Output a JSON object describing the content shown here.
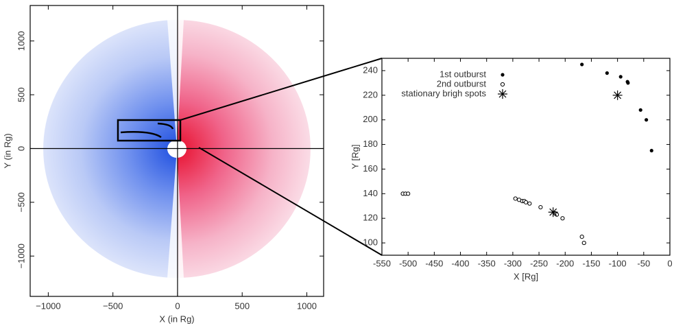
{
  "chart_data": [
    {
      "type": "map",
      "xlabel": "X (in Rg)",
      "ylabel": "Y (in Rg)",
      "xlim": [
        -1140,
        1130
      ],
      "ylim": [
        -1375,
        1330
      ],
      "xticks": [
        {
          "value": -1000,
          "label": "−1000"
        },
        {
          "value": -500,
          "label": "−500"
        },
        0,
        500,
        1000
      ],
      "yticks": [
        {
          "value": -1000,
          "label": "−1000"
        },
        {
          "value": -500,
          "label": "−500"
        },
        0,
        500,
        1000
      ]
    },
    {
      "type": "scatter",
      "xlabel": "X [Rg]",
      "ylabel": "Y [Rg]",
      "xlim": [
        -550,
        0
      ],
      "ylim": [
        90,
        250
      ],
      "xticks": [
        -550,
        -500,
        -450,
        -400,
        -350,
        -300,
        -250,
        -200,
        -150,
        -100,
        -50,
        0
      ],
      "yticks": [
        100,
        120,
        140,
        160,
        180,
        200,
        220,
        240
      ],
      "legend": "upper left",
      "series": [
        {
          "name": "1st outburst",
          "marker": "filled-circle",
          "color": "#000000",
          "x": [
            -168,
            -120,
            -94,
            -81,
            -80,
            -56,
            -45,
            -35
          ],
          "values": [
            245,
            238,
            235,
            231,
            230,
            208,
            200,
            175
          ]
        },
        {
          "name": "2nd outburst",
          "marker": "open-circle",
          "color": "#000000",
          "x": [
            -510,
            -505,
            -500,
            -295,
            -288,
            -282,
            -278,
            -275,
            -268,
            -247,
            -219,
            -216,
            -205,
            -168,
            -164
          ],
          "values": [
            140,
            140,
            140,
            136,
            135,
            134,
            134,
            133,
            132,
            129,
            124,
            123,
            120,
            105,
            100
          ]
        },
        {
          "name": "stationary brigh spots",
          "marker": "asterisk",
          "color": "#000000",
          "x": [
            -100,
            -223
          ],
          "values": [
            220,
            125
          ]
        }
      ]
    }
  ]
}
